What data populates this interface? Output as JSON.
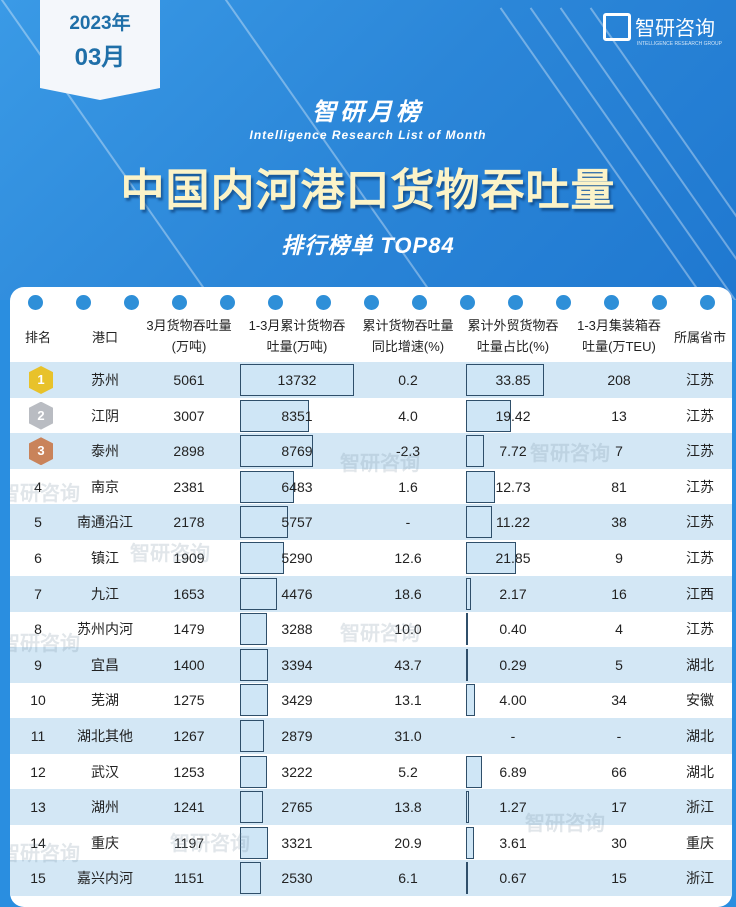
{
  "header": {
    "date_year": "2023年",
    "date_month": "03月",
    "logo_text": "智研咨询",
    "logo_sub": "INTELLIGENCE RESEARCH GROUP",
    "brand_title": "智研月榜",
    "brand_subtitle": "Intelligence Research List of Month",
    "title": "中国内河港口货物吞吐量",
    "ranking_label": "排行榜单  TOP84"
  },
  "watermark": "智研咨询",
  "colors": {
    "background": "#2a8ee0",
    "row_alt": "#d3e7f5",
    "bar_fill": "#cfe6f6",
    "title": "#fbf3c8",
    "gold": "#e8c22a",
    "silver": "#b9bcc2",
    "bronze": "#c9835a"
  },
  "chart_data": {
    "type": "table",
    "title": "中国内河港口货物吞吐量",
    "columns": [
      "排名",
      "港口",
      "3月货物吞吐量(万吨)",
      "1-3月累计货物吞吐量(万吨)",
      "累计货物吞吐量同比增速(%)",
      "累计外贸货物吞吐量占比(%)",
      "1-3月集装箱吞吐量(万TEU)",
      "所属省市"
    ],
    "header_lines": [
      [
        "排名"
      ],
      [
        "港口"
      ],
      [
        "3月货物吞吐量",
        "(万吨)"
      ],
      [
        "1-3月累计货物吞",
        "吐量(万吨)"
      ],
      [
        "累计货物吞吐量",
        "同比增速(%)"
      ],
      [
        "累计外贸货物吞",
        "吐量占比(%)"
      ],
      [
        "1-3月集装箱吞",
        "吐量(万TEU)"
      ],
      [
        "所属省市"
      ]
    ],
    "rows": [
      {
        "rank": "1",
        "port": "苏州",
        "march": "5061",
        "cumulative": "13732",
        "growth": "0.2",
        "foreign_share": "33.85",
        "container": "208",
        "province": "江苏"
      },
      {
        "rank": "2",
        "port": "江阴",
        "march": "3007",
        "cumulative": "8351",
        "growth": "4.0",
        "foreign_share": "19.42",
        "container": "13",
        "province": "江苏"
      },
      {
        "rank": "3",
        "port": "泰州",
        "march": "2898",
        "cumulative": "8769",
        "growth": "-2.3",
        "foreign_share": "7.72",
        "container": "7",
        "province": "江苏"
      },
      {
        "rank": "4",
        "port": "南京",
        "march": "2381",
        "cumulative": "6483",
        "growth": "1.6",
        "foreign_share": "12.73",
        "container": "81",
        "province": "江苏"
      },
      {
        "rank": "5",
        "port": "南通沿江",
        "march": "2178",
        "cumulative": "5757",
        "growth": "-",
        "foreign_share": "11.22",
        "container": "38",
        "province": "江苏"
      },
      {
        "rank": "6",
        "port": "镇江",
        "march": "1909",
        "cumulative": "5290",
        "growth": "12.6",
        "foreign_share": "21.85",
        "container": "9",
        "province": "江苏"
      },
      {
        "rank": "7",
        "port": "九江",
        "march": "1653",
        "cumulative": "4476",
        "growth": "18.6",
        "foreign_share": "2.17",
        "container": "16",
        "province": "江西"
      },
      {
        "rank": "8",
        "port": "苏州内河",
        "march": "1479",
        "cumulative": "3288",
        "growth": "10.0",
        "foreign_share": "0.40",
        "container": "4",
        "province": "江苏"
      },
      {
        "rank": "9",
        "port": "宜昌",
        "march": "1400",
        "cumulative": "3394",
        "growth": "43.7",
        "foreign_share": "0.29",
        "container": "5",
        "province": "湖北"
      },
      {
        "rank": "10",
        "port": "芜湖",
        "march": "1275",
        "cumulative": "3429",
        "growth": "13.1",
        "foreign_share": "4.00",
        "container": "34",
        "province": "安徽"
      },
      {
        "rank": "11",
        "port": "湖北其他",
        "march": "1267",
        "cumulative": "2879",
        "growth": "31.0",
        "foreign_share": "-",
        "container": "-",
        "province": "湖北"
      },
      {
        "rank": "12",
        "port": "武汉",
        "march": "1253",
        "cumulative": "3222",
        "growth": "5.2",
        "foreign_share": "6.89",
        "container": "66",
        "province": "湖北"
      },
      {
        "rank": "13",
        "port": "湖州",
        "march": "1241",
        "cumulative": "2765",
        "growth": "13.8",
        "foreign_share": "1.27",
        "container": "17",
        "province": "浙江"
      },
      {
        "rank": "14",
        "port": "重庆",
        "march": "1197",
        "cumulative": "3321",
        "growth": "20.9",
        "foreign_share": "3.61",
        "container": "30",
        "province": "重庆"
      },
      {
        "rank": "15",
        "port": "嘉兴内河",
        "march": "1151",
        "cumulative": "2530",
        "growth": "6.1",
        "foreign_share": "0.67",
        "container": "15",
        "province": "浙江"
      }
    ]
  }
}
